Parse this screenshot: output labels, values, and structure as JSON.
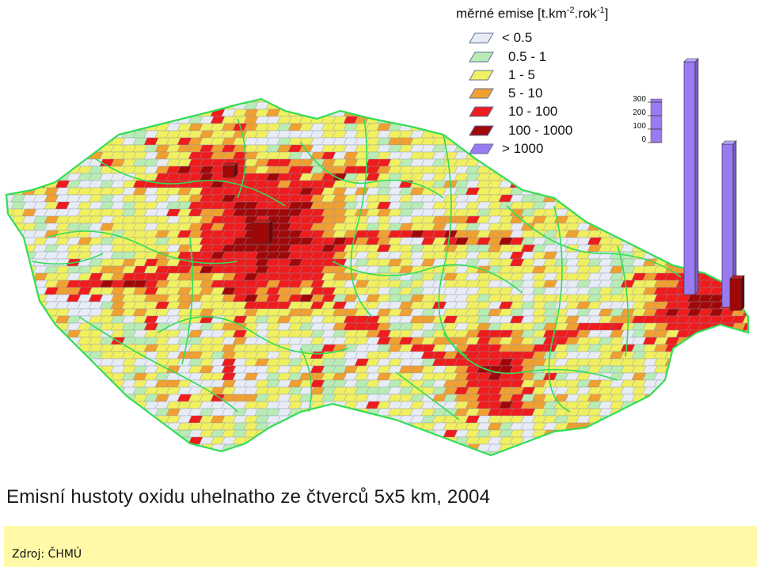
{
  "map": {
    "legend_title": "měrné emise [t.km",
    "legend_exp1": "-2",
    "legend_mid": ".rok",
    "legend_exp2": "-1",
    "legend_close": "]",
    "categories": [
      {
        "label": "< 0.5",
        "color": "#e8ecf5"
      },
      {
        "label": "0.5 - 1",
        "color": "#b8ecb4"
      },
      {
        "label": "1 - 5",
        "color": "#f0f060"
      },
      {
        "label": "5 - 10",
        "color": "#f0a030"
      },
      {
        "label": "10 - 100",
        "color": "#ee1c1c"
      },
      {
        "label": "100 - 1000",
        "color": "#a00808"
      },
      {
        "label": "> 1000",
        "color": "#9a7af0"
      }
    ],
    "bar_scale_ticks": [
      "300",
      "200",
      "100",
      "0"
    ],
    "border_color": "#33dd55"
  },
  "caption": "Emisní hustoty oxidu uhelnatho ze čtverců 5x5 km, 2004",
  "source": "Zdroj: ČHMÚ"
}
